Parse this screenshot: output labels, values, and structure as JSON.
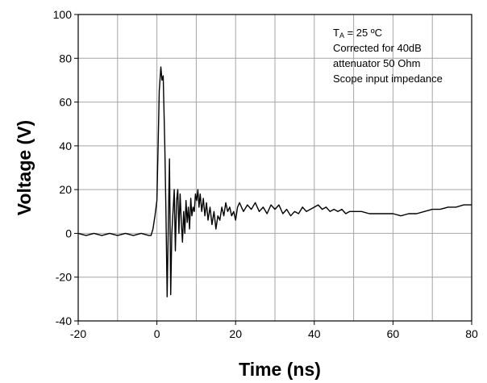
{
  "chart_data": {
    "type": "line",
    "title": "",
    "xlabel": "Time  (ns)",
    "ylabel": "Voltage (V)",
    "xlim": [
      -20,
      80
    ],
    "ylim": [
      -40,
      100
    ],
    "xticks": [
      -20,
      0,
      20,
      40,
      60,
      80
    ],
    "yticks": [
      -40,
      -20,
      0,
      20,
      40,
      60,
      80,
      100
    ],
    "x_minor_gridlines": [
      -10,
      10,
      30,
      50,
      70
    ],
    "grid": true,
    "legend": "none",
    "line_color": "#000000",
    "grid_color": "#a6a6a6",
    "annotation": {
      "ta_main": "T",
      "ta_sub": "A",
      "ta_rest": " = 25 ºC",
      "line2": "Corrected for 40dB",
      "line3": "attenuator 50 Ohm",
      "line4": "Scope input impedance"
    },
    "series": [
      {
        "x": [
          -20,
          -18,
          -16,
          -14,
          -12,
          -10,
          -8,
          -6,
          -4,
          -2,
          -1.5,
          -1,
          -0.5,
          0,
          0.3,
          0.6,
          1,
          1.3,
          1.6,
          2,
          2.3,
          2.6,
          2.9,
          3.2,
          3.5,
          3.8,
          4.1,
          4.4,
          4.7,
          5,
          5.3,
          5.6,
          5.9,
          6.2,
          6.5,
          6.8,
          7.1,
          7.4,
          7.7,
          8,
          8.3,
          8.6,
          8.9,
          9.2,
          9.5,
          9.8,
          10.1,
          10.4,
          10.7,
          11,
          11.4,
          11.8,
          12.2,
          12.6,
          13,
          13.5,
          14,
          14.5,
          15,
          15.5,
          16,
          16.5,
          17,
          17.5,
          18,
          18.5,
          19,
          19.5,
          20,
          20.5,
          21,
          21.5,
          22,
          23,
          24,
          25,
          26,
          27,
          28,
          29,
          30,
          31,
          32,
          33,
          34,
          35,
          36,
          37,
          38,
          39,
          40,
          41,
          42,
          43,
          44,
          45,
          46,
          47,
          48,
          49,
          50,
          52,
          54,
          56,
          58,
          60,
          62,
          64,
          66,
          68,
          70,
          72,
          74,
          76,
          78,
          80
        ],
        "y": [
          0,
          -1,
          0,
          -1,
          0,
          -1,
          0,
          -1,
          0,
          -1,
          -1,
          2,
          8,
          15,
          40,
          65,
          76,
          70,
          72,
          40,
          10,
          -29,
          5,
          34,
          -28,
          0,
          10,
          20,
          -8,
          15,
          20,
          0,
          18,
          5,
          -4,
          10,
          0,
          15,
          5,
          12,
          2,
          16,
          8,
          12,
          10,
          18,
          15,
          20,
          12,
          18,
          10,
          16,
          8,
          14,
          6,
          12,
          4,
          10,
          2,
          8,
          6,
          12,
          8,
          14,
          10,
          12,
          8,
          10,
          6,
          12,
          14,
          12,
          10,
          13,
          11,
          14,
          10,
          12,
          9,
          13,
          11,
          13,
          9,
          11,
          8,
          10,
          9,
          12,
          10,
          11,
          12,
          13,
          11,
          12,
          10,
          11,
          10,
          11,
          9,
          10,
          10,
          10,
          9,
          9,
          9,
          9,
          8,
          9,
          9,
          10,
          11,
          11,
          12,
          12,
          13,
          13
        ]
      }
    ]
  }
}
